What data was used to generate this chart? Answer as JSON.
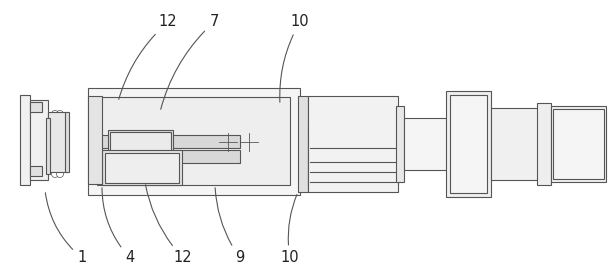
{
  "bg_color": "#ffffff",
  "lc": "#555555",
  "lw": 0.8,
  "fig_width": 6.12,
  "fig_height": 2.8,
  "dpi": 100
}
